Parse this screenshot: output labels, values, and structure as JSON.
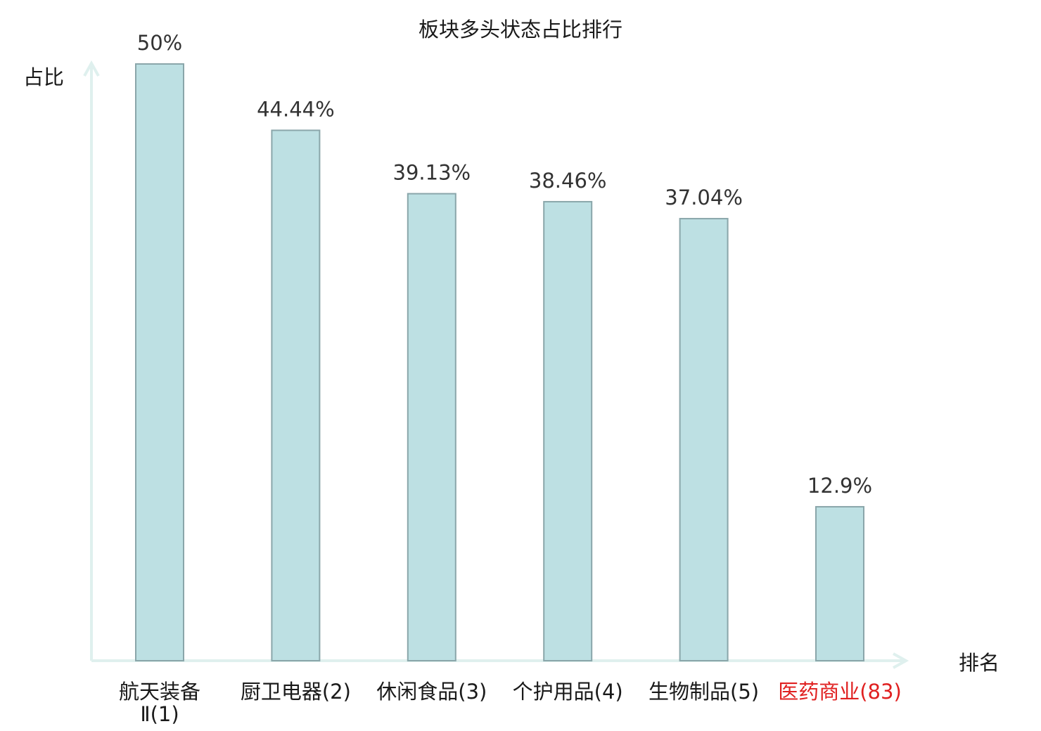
{
  "chart_data": {
    "type": "bar",
    "title": "板块多头状态占比排行",
    "xlabel": "排名",
    "ylabel": "占比",
    "ylim": [
      0,
      50
    ],
    "grid": false,
    "legend": "none",
    "categories": [
      {
        "name_lines": [
          "航天装备",
          "Ⅱ(1)"
        ],
        "highlight": false
      },
      {
        "name_lines": [
          "厨卫电器(2)"
        ],
        "highlight": false
      },
      {
        "name_lines": [
          "休闲食品(3)"
        ],
        "highlight": false
      },
      {
        "name_lines": [
          "个护用品(4)"
        ],
        "highlight": false
      },
      {
        "name_lines": [
          "生物制品(5)"
        ],
        "highlight": false
      },
      {
        "name_lines": [
          "医药商业(83)"
        ],
        "highlight": true
      }
    ],
    "values": [
      50,
      44.44,
      39.13,
      38.46,
      37.04,
      12.9
    ],
    "value_labels": [
      "50%",
      "44.44%",
      "39.13%",
      "38.46%",
      "37.04%",
      "12.9%"
    ],
    "colors": {
      "bar_fill": "#bde0e3",
      "bar_stroke": "#8aa6aa",
      "axis": "#dff0ee",
      "label_text": "#1a1a1a",
      "highlight_text": "#e02020"
    }
  }
}
